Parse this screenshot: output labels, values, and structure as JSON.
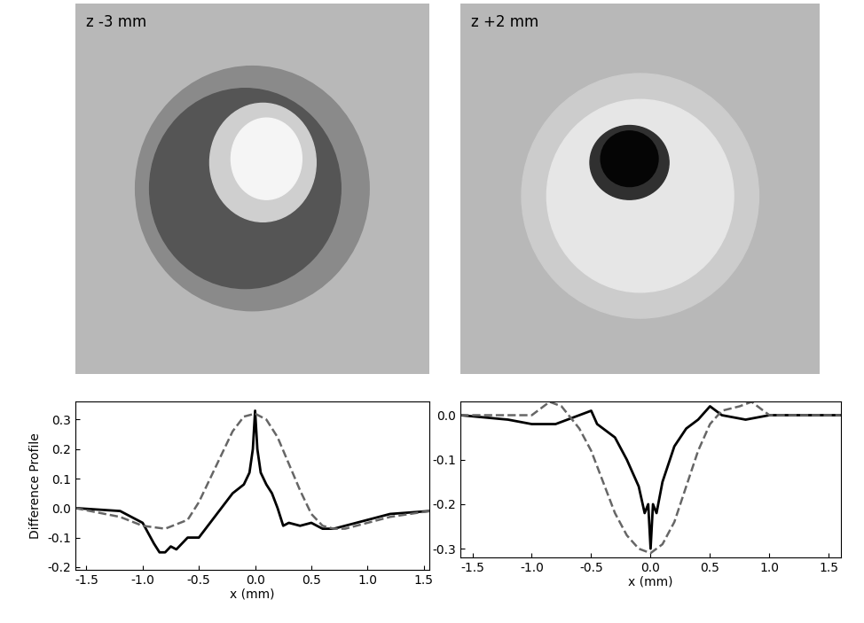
{
  "images": [
    {
      "label": "z -3 mm"
    },
    {
      "label": "z +2 mm"
    }
  ],
  "chart_data": [
    {
      "type": "line",
      "x_label": "x (mm)",
      "y_label": "Difference Profile",
      "xlim": [
        -1.6,
        1.55
      ],
      "ylim": [
        -0.21,
        0.36
      ],
      "xticks": [
        -1.5,
        -1.0,
        -0.5,
        0.0,
        0.5,
        1.0,
        1.5
      ],
      "yticks": [
        -0.2,
        -0.1,
        0.0,
        0.1,
        0.2,
        0.3
      ],
      "series": [
        {
          "color": "#000000",
          "line_style": "solid",
          "x": [
            -1.6,
            -1.2,
            -1.0,
            -0.9,
            -0.85,
            -0.8,
            -0.75,
            -0.7,
            -0.6,
            -0.5,
            -0.4,
            -0.3,
            -0.2,
            -0.1,
            -0.05,
            -0.02,
            0.0,
            0.02,
            0.05,
            0.1,
            0.15,
            0.2,
            0.25,
            0.3,
            0.4,
            0.5,
            0.6,
            0.7,
            0.8,
            1.0,
            1.2,
            1.55
          ],
          "values": [
            0.0,
            -0.01,
            -0.05,
            -0.12,
            -0.15,
            -0.15,
            -0.13,
            -0.14,
            -0.1,
            -0.1,
            -0.05,
            0.0,
            0.05,
            0.08,
            0.12,
            0.2,
            0.33,
            0.2,
            0.12,
            0.08,
            0.05,
            0.0,
            -0.06,
            -0.05,
            -0.06,
            -0.05,
            -0.07,
            -0.07,
            -0.06,
            -0.04,
            -0.02,
            -0.01
          ]
        },
        {
          "color": "#666666",
          "line_style": "dashed",
          "x": [
            -1.6,
            -1.2,
            -1.0,
            -0.8,
            -0.6,
            -0.5,
            -0.4,
            -0.3,
            -0.2,
            -0.1,
            0.0,
            0.1,
            0.2,
            0.3,
            0.4,
            0.5,
            0.6,
            0.7,
            0.8,
            1.0,
            1.2,
            1.55
          ],
          "values": [
            0.0,
            -0.03,
            -0.06,
            -0.07,
            -0.04,
            0.02,
            0.1,
            0.18,
            0.26,
            0.31,
            0.32,
            0.3,
            0.24,
            0.15,
            0.06,
            -0.02,
            -0.06,
            -0.07,
            -0.07,
            -0.05,
            -0.03,
            -0.01
          ]
        }
      ]
    },
    {
      "type": "line",
      "x_label": "x (mm)",
      "xlim": [
        -1.6,
        1.6
      ],
      "ylim": [
        -0.32,
        0.03
      ],
      "xticks": [
        -1.5,
        -1.0,
        -0.5,
        0.0,
        0.5,
        1.0,
        1.5
      ],
      "yticks": [
        -0.3,
        -0.2,
        -0.1,
        0.0
      ],
      "series": [
        {
          "color": "#000000",
          "line_style": "solid",
          "x": [
            -1.6,
            -1.2,
            -1.0,
            -0.8,
            -0.7,
            -0.6,
            -0.5,
            -0.45,
            -0.4,
            -0.3,
            -0.2,
            -0.1,
            -0.05,
            -0.02,
            0.0,
            0.02,
            0.05,
            0.1,
            0.2,
            0.3,
            0.4,
            0.5,
            0.6,
            0.8,
            1.0,
            1.6
          ],
          "values": [
            0.0,
            -0.01,
            -0.02,
            -0.02,
            -0.01,
            0.0,
            0.01,
            -0.02,
            -0.03,
            -0.05,
            -0.1,
            -0.16,
            -0.22,
            -0.2,
            -0.3,
            -0.2,
            -0.22,
            -0.15,
            -0.07,
            -0.03,
            -0.01,
            0.02,
            0.0,
            -0.01,
            0.0,
            0.0
          ]
        },
        {
          "color": "#666666",
          "line_style": "dashed",
          "x": [
            -1.6,
            -1.0,
            -0.85,
            -0.75,
            -0.6,
            -0.5,
            -0.4,
            -0.3,
            -0.2,
            -0.1,
            0.0,
            0.1,
            0.2,
            0.3,
            0.4,
            0.5,
            0.6,
            0.75,
            0.85,
            1.0,
            1.6
          ],
          "values": [
            0.0,
            0.0,
            0.03,
            0.02,
            -0.03,
            -0.08,
            -0.15,
            -0.22,
            -0.27,
            -0.3,
            -0.31,
            -0.29,
            -0.24,
            -0.16,
            -0.08,
            -0.02,
            0.01,
            0.02,
            0.03,
            0.0,
            0.0
          ]
        }
      ]
    }
  ]
}
